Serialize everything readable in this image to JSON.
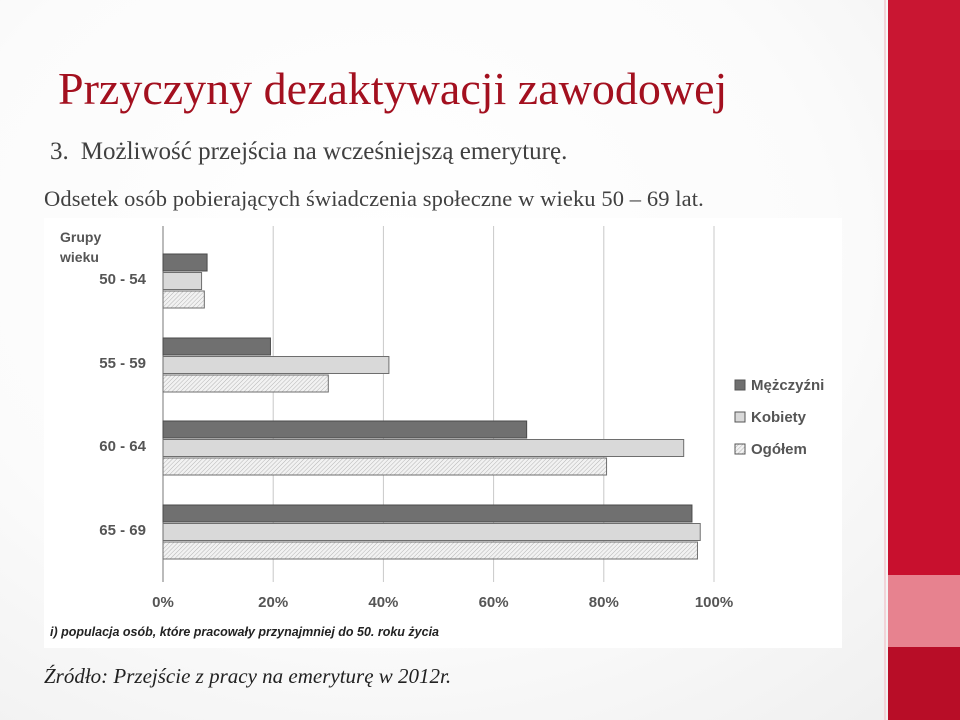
{
  "slide": {
    "title": "Przyczyny dezaktywacji zawodowej",
    "subtitle_number": "3.",
    "subtitle_text": "Możliwość przejścia na wcześniejszą emeryturę.",
    "caption": "Odsetek osób pobierających świadczenia społeczne w wieku 50 – 69 lat.",
    "source": "Źródło: Przejście z pracy na emeryturę w 2012r."
  },
  "colors": {
    "accent": "#c8102e",
    "title": "#a3101f",
    "men": "#707070",
    "women": "#d9d9d9",
    "total": "#e6e6e6"
  },
  "chart_data": {
    "type": "bar",
    "orientation": "horizontal",
    "ylabel": "Grupy wieku",
    "categories": [
      "50 - 54",
      "55 - 59",
      "60 - 64",
      "65 - 69"
    ],
    "series": [
      {
        "name": "Mężczyźni",
        "values": [
          8,
          19.5,
          66,
          96
        ]
      },
      {
        "name": "Kobiety",
        "values": [
          7,
          41,
          94.5,
          97.5
        ]
      },
      {
        "name": "Ogółem",
        "values": [
          7.5,
          30,
          80.5,
          97
        ]
      }
    ],
    "xlim": [
      0,
      100
    ],
    "xticks": [
      "0%",
      "20%",
      "40%",
      "60%",
      "80%",
      "100%"
    ],
    "grid": "vertical",
    "legend_position": "right",
    "footnote": "i) populacja osób, które pracowały przynajmniej do 50. roku życia"
  }
}
